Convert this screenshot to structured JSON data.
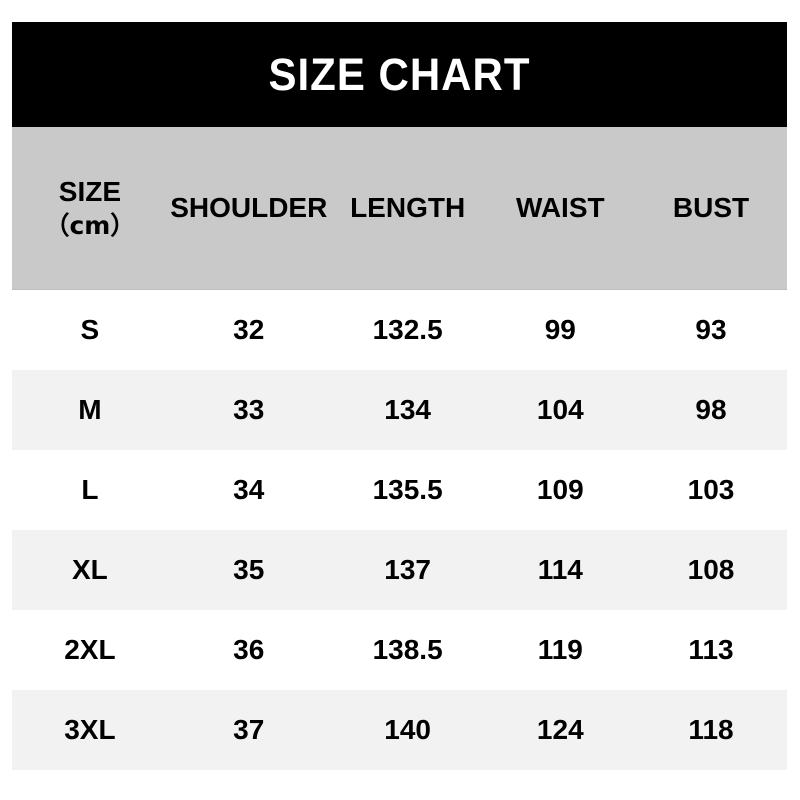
{
  "title": "SIZE CHART",
  "colors": {
    "title_bg": "#000000",
    "title_text": "#ffffff",
    "header_bg": "#c9c9c9",
    "row_stripe_bg": "#f2f2f2",
    "row_bg": "#ffffff",
    "text": "#000000"
  },
  "table": {
    "header": {
      "size": "SIZE",
      "size_unit": "（cm）",
      "shoulder": "SHOULDER",
      "length": "LENGTH",
      "waist": "WAIST",
      "bust": "BUST"
    },
    "rows": [
      {
        "size": "S",
        "shoulder": "32",
        "length": "132.5",
        "waist": "99",
        "bust": "93"
      },
      {
        "size": "M",
        "shoulder": "33",
        "length": "134",
        "waist": "104",
        "bust": "98"
      },
      {
        "size": "L",
        "shoulder": "34",
        "length": "135.5",
        "waist": "109",
        "bust": "103"
      },
      {
        "size": "XL",
        "shoulder": "35",
        "length": "137",
        "waist": "114",
        "bust": "108"
      },
      {
        "size": "2XL",
        "shoulder": "36",
        "length": "138.5",
        "waist": "119",
        "bust": "113"
      },
      {
        "size": "3XL",
        "shoulder": "37",
        "length": "140",
        "waist": "124",
        "bust": "118"
      }
    ]
  },
  "chart_data": {
    "type": "table",
    "title": "SIZE CHART",
    "unit": "cm",
    "columns": [
      "SIZE（cm）",
      "SHOULDER",
      "LENGTH",
      "WAIST",
      "BUST"
    ],
    "rows": [
      [
        "S",
        32,
        132.5,
        99,
        93
      ],
      [
        "M",
        33,
        134,
        104,
        98
      ],
      [
        "L",
        34,
        135.5,
        109,
        103
      ],
      [
        "XL",
        35,
        137,
        114,
        108
      ],
      [
        "2XL",
        36,
        138.5,
        119,
        113
      ],
      [
        "3XL",
        37,
        140,
        124,
        118
      ]
    ]
  }
}
